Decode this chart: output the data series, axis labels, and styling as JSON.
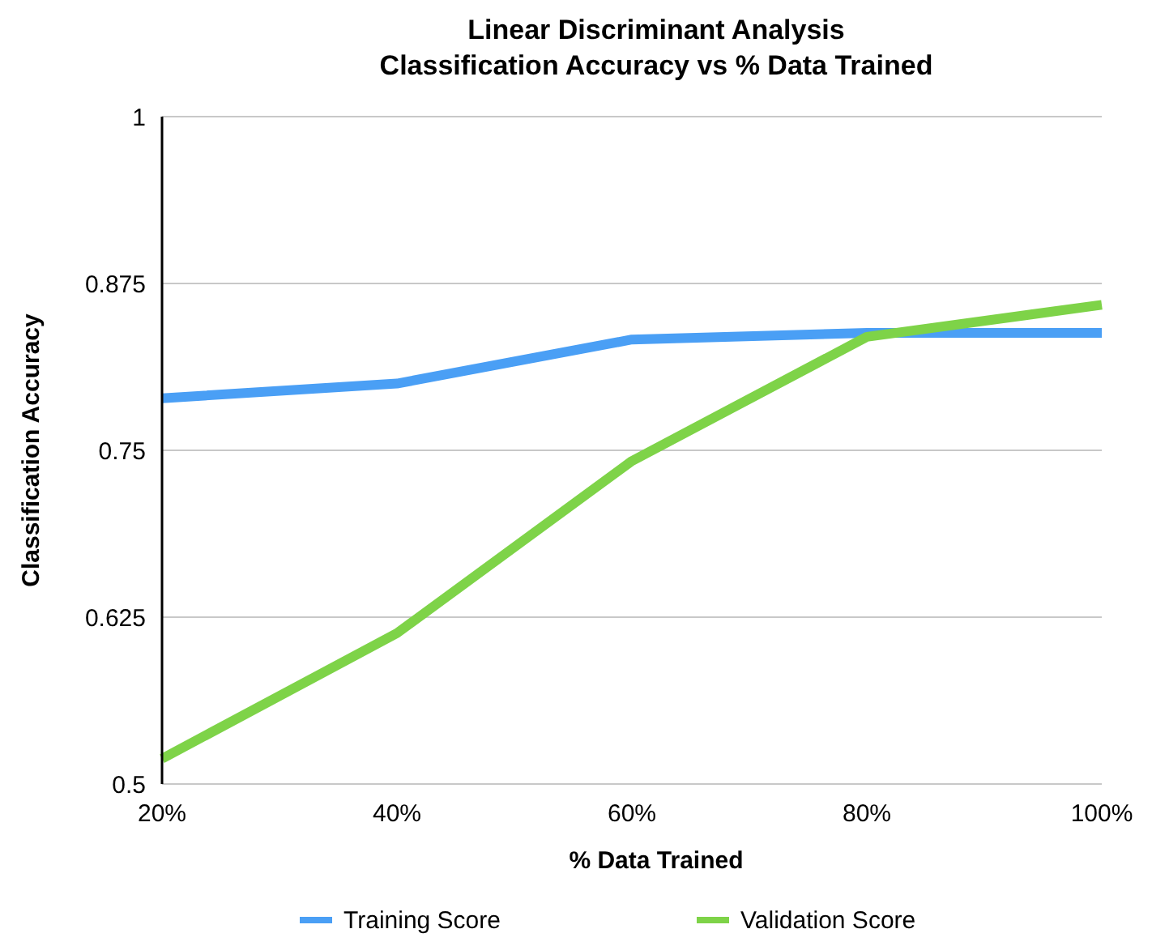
{
  "chart_data": {
    "type": "line",
    "title": "Linear Discriminant Analysis\nClassification Accuracy vs % Data Trained",
    "xlabel": "% Data Trained",
    "ylabel": "Classification Accuracy",
    "categories": [
      "20%",
      "40%",
      "60%",
      "80%",
      "100%"
    ],
    "series": [
      {
        "name": "Training Score",
        "color": "#4a9ff5",
        "values": [
          0.789,
          0.8,
          0.833,
          0.838,
          0.838
        ]
      },
      {
        "name": "Validation Score",
        "color": "#7ed348",
        "values": [
          0.519,
          0.613,
          0.742,
          0.835,
          0.859
        ]
      }
    ],
    "ylim": [
      0.5,
      1
    ],
    "yticks": [
      0.5,
      0.625,
      0.75,
      0.875,
      1
    ],
    "grid": "y",
    "legend": "bottom",
    "marker": "none",
    "line_style": "solid"
  }
}
